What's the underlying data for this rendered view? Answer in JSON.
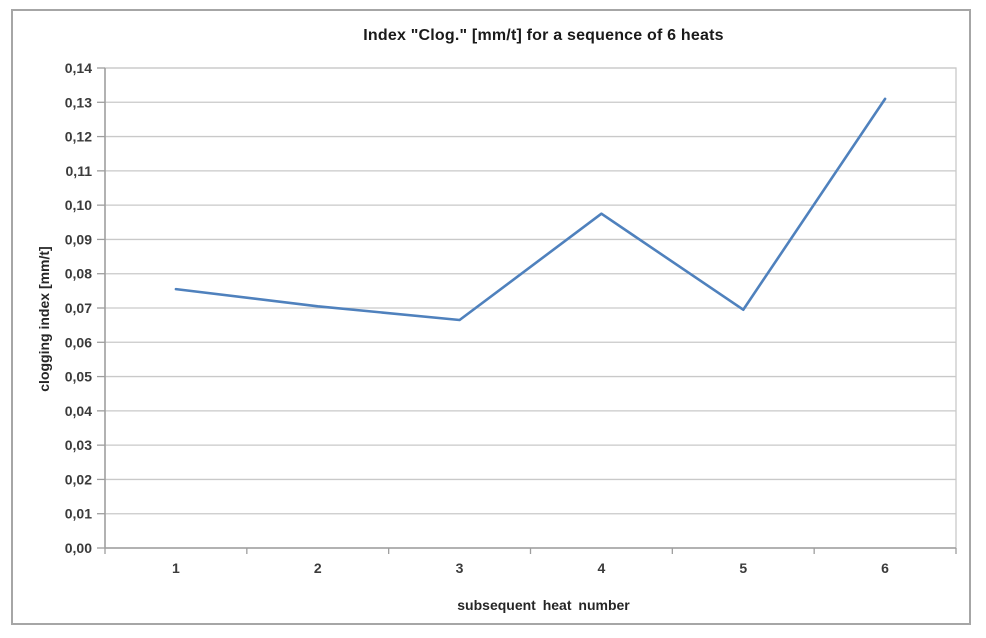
{
  "chart_data": {
    "type": "line",
    "title": "Index \"Clog.\" [mm/t] for a sequence of 6 heats",
    "xlabel": "subsequent heat number",
    "ylabel": "clogging index [mm/t]",
    "categories": [
      "1",
      "2",
      "3",
      "4",
      "5",
      "6"
    ],
    "series": [
      {
        "name": "clogging index",
        "values": [
          0.0755,
          0.0705,
          0.0665,
          0.0975,
          0.0695,
          0.131
        ]
      }
    ],
    "ylim": [
      0.0,
      0.14
    ],
    "ytick_step": 0.01,
    "ytick_labels": [
      "0,00",
      "0,01",
      "0,02",
      "0,03",
      "0,04",
      "0,05",
      "0,06",
      "0,07",
      "0,08",
      "0,09",
      "0,10",
      "0,11",
      "0,12",
      "0,13",
      "0,14"
    ],
    "decimal_separator": ",",
    "grid": true,
    "legend": false,
    "markers": false
  },
  "colors": {
    "line": "#4F81BD",
    "gridline": "#c9c9c9",
    "axis": "#9e9e9e",
    "frame_border": "#a6a6a6",
    "tick_text": "#3b3b3b",
    "title_text": "#1a1a1a",
    "background": "#ffffff"
  }
}
